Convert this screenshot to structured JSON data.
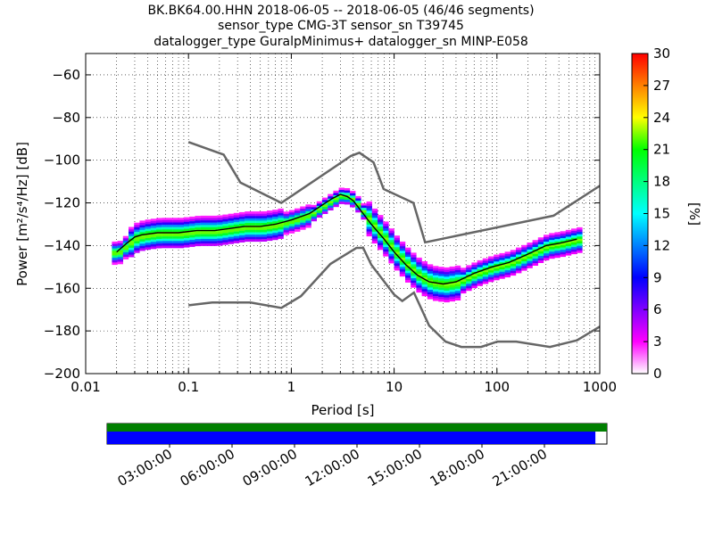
{
  "chart_data": {
    "type": "heatmap",
    "title_lines": [
      "BK.BK64.00.HHN   2018-06-05 -- 2018-06-05  (46/46 segments)",
      "sensor_type CMG-3T sensor_sn T39745",
      "datalogger_type GuralpMinimus+ datalogger_sn MINP-E058"
    ],
    "xlabel": "Period [s]",
    "ylabel": "Power [m²/s⁴/Hz] [dB]",
    "x_scale": "log",
    "xlim": [
      0.01,
      1000
    ],
    "ylim": [
      -200,
      -50
    ],
    "x_ticks": [
      {
        "value": 0.01,
        "label": "0.01"
      },
      {
        "value": 0.1,
        "label": "0.1"
      },
      {
        "value": 1,
        "label": "1"
      },
      {
        "value": 10,
        "label": "10"
      },
      {
        "value": 100,
        "label": "100"
      },
      {
        "value": 1000,
        "label": "1000"
      }
    ],
    "y_ticks": [
      {
        "value": -60,
        "label": "−60"
      },
      {
        "value": -80,
        "label": "−80"
      },
      {
        "value": -100,
        "label": "−100"
      },
      {
        "value": -120,
        "label": "−120"
      },
      {
        "value": -140,
        "label": "−140"
      },
      {
        "value": -160,
        "label": "−160"
      },
      {
        "value": -180,
        "label": "−180"
      },
      {
        "value": -200,
        "label": "−200"
      }
    ],
    "grid": true,
    "colorbar": {
      "label": "[%]",
      "range": [
        0,
        30
      ],
      "ticks": [
        "0",
        "3",
        "6",
        "9",
        "12",
        "15",
        "18",
        "21",
        "24",
        "27",
        "30"
      ],
      "colormap": [
        "#ffffff",
        "#ff00ff",
        "#8000ff",
        "#0000ff",
        "#0080ff",
        "#00ffff",
        "#00ff80",
        "#00ff00",
        "#ffff00",
        "#ff8000",
        "#ff0000"
      ]
    },
    "nhnm": [
      [
        0.1,
        -91.5
      ],
      [
        0.22,
        -97.4
      ],
      [
        0.32,
        -110.5
      ],
      [
        0.8,
        -120
      ],
      [
        3.8,
        -98
      ],
      [
        4.6,
        -96.5
      ],
      [
        6.3,
        -101
      ],
      [
        7.9,
        -113.5
      ],
      [
        15.4,
        -120
      ],
      [
        20,
        -138.5
      ],
      [
        354.8,
        -126
      ],
      [
        1000,
        -112
      ]
    ],
    "nlnm": [
      [
        0.1,
        -168
      ],
      [
        0.17,
        -166.7
      ],
      [
        0.4,
        -166.7
      ],
      [
        0.8,
        -169.2
      ],
      [
        1.24,
        -163.7
      ],
      [
        2.4,
        -148.6
      ],
      [
        4.3,
        -141.1
      ],
      [
        5,
        -141.1
      ],
      [
        6,
        -149
      ],
      [
        10,
        -163
      ],
      [
        12,
        -166
      ],
      [
        15.6,
        -162
      ],
      [
        21.9,
        -177.5
      ],
      [
        31.6,
        -185
      ],
      [
        45,
        -187.5
      ],
      [
        70,
        -187.5
      ],
      [
        101,
        -185
      ],
      [
        154,
        -185
      ],
      [
        328,
        -187.5
      ],
      [
        600,
        -184.4
      ],
      [
        1000,
        -178
      ]
    ],
    "mean_psd": [
      [
        0.02,
        -143
      ],
      [
        0.025,
        -139
      ],
      [
        0.03,
        -136
      ],
      [
        0.035,
        -135
      ],
      [
        0.05,
        -134
      ],
      [
        0.08,
        -134
      ],
      [
        0.12,
        -133
      ],
      [
        0.18,
        -133
      ],
      [
        0.25,
        -132
      ],
      [
        0.35,
        -131
      ],
      [
        0.5,
        -131
      ],
      [
        0.7,
        -130
      ],
      [
        1,
        -128
      ],
      [
        1.5,
        -125
      ],
      [
        2,
        -121
      ],
      [
        2.5,
        -118
      ],
      [
        3,
        -116
      ],
      [
        3.5,
        -117
      ],
      [
        4,
        -119
      ],
      [
        5,
        -125
      ],
      [
        6,
        -130
      ],
      [
        8,
        -137
      ],
      [
        10,
        -143
      ],
      [
        13,
        -149
      ],
      [
        17,
        -154
      ],
      [
        22,
        -157
      ],
      [
        30,
        -158
      ],
      [
        40,
        -157
      ],
      [
        60,
        -153
      ],
      [
        90,
        -150
      ],
      [
        130,
        -148
      ],
      [
        200,
        -144
      ],
      [
        300,
        -140
      ],
      [
        400,
        -139
      ],
      [
        600,
        -137
      ]
    ],
    "segments_bar": {
      "ticks": [
        "03:00:00",
        "06:00:00",
        "09:00:00",
        "12:00:00",
        "15:00:00",
        "18:00:00",
        "21:00:00"
      ],
      "top_fill": 1.0,
      "bottom_fill": 0.977,
      "top_color": "#007f00",
      "bottom_color": "#0000ff"
    }
  }
}
